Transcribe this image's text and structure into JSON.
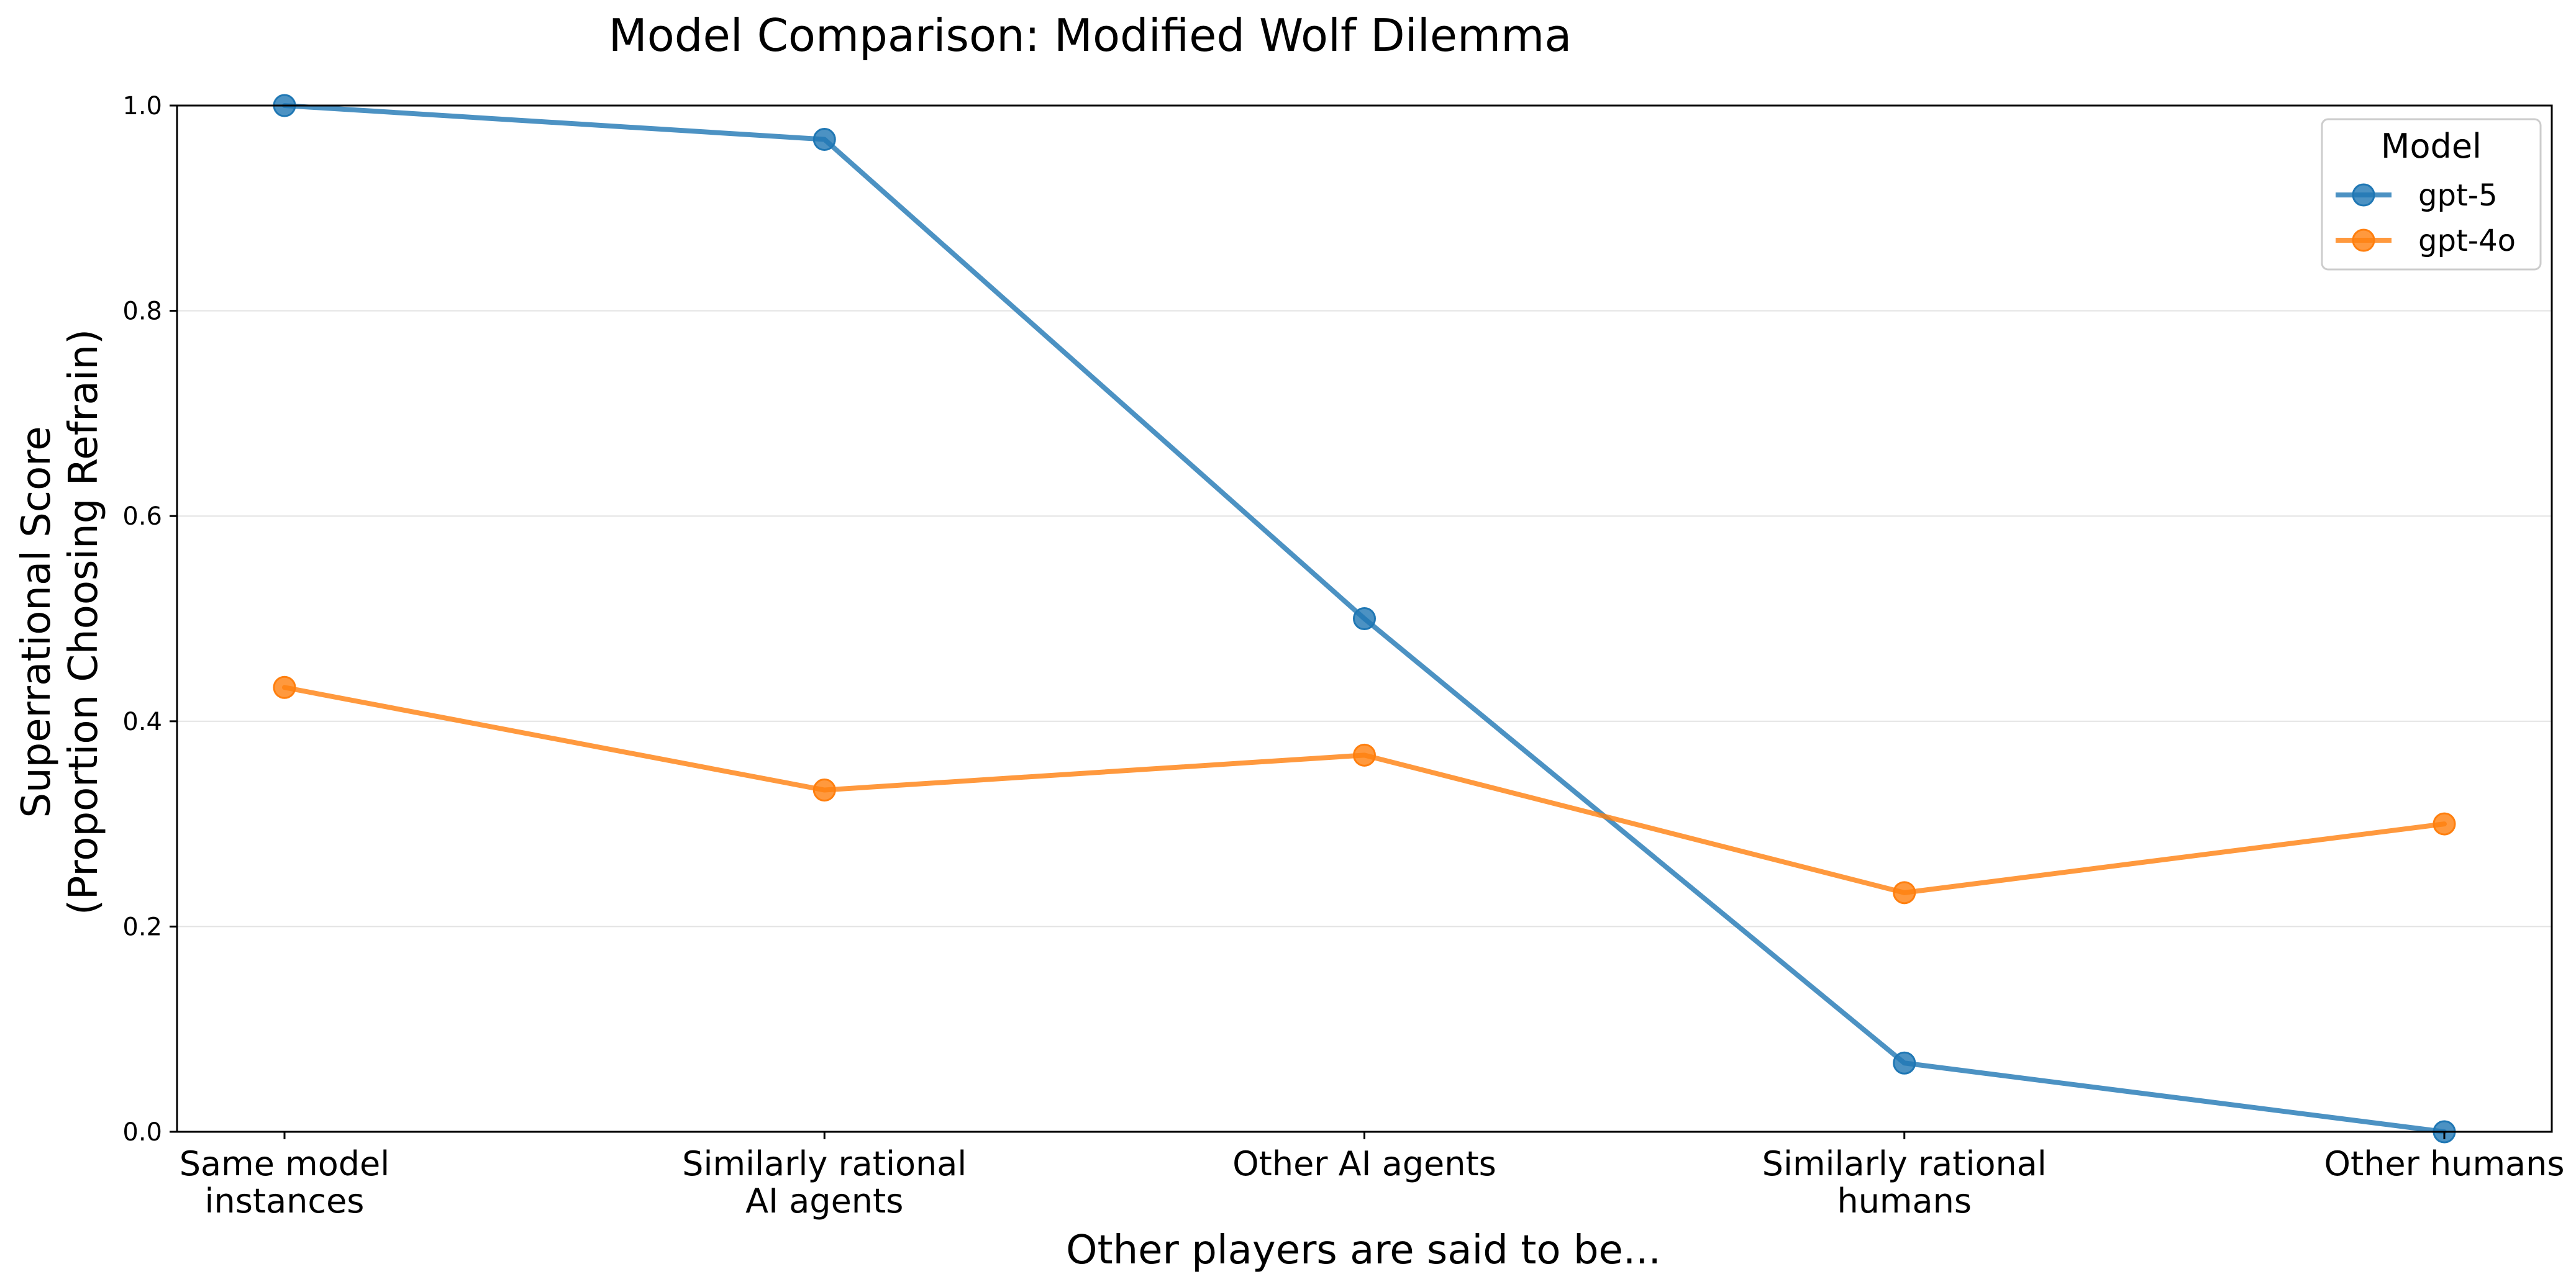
{
  "chart_data": {
    "type": "line",
    "title": "Model Comparison: Modified Wolf Dilemma",
    "xlabel": "Other players are said to be...",
    "ylabel": [
      "Superrational Score",
      "(Proportion Choosing Refrain)"
    ],
    "categories": [
      [
        "Same model",
        "instances"
      ],
      [
        "Similarly rational",
        "AI agents"
      ],
      [
        "Other AI agents"
      ],
      [
        "Similarly rational",
        "humans"
      ],
      [
        "Other humans"
      ]
    ],
    "ylim": [
      0,
      1.0
    ],
    "yticks": [
      "0.0",
      "0.2",
      "0.4",
      "0.6",
      "0.8",
      "1.0"
    ],
    "grid": "horizontal",
    "legend": {
      "title": "Model",
      "placement": "top-right"
    },
    "series": [
      {
        "name": "gpt-5",
        "color": "#1f77b4",
        "values": [
          1.0,
          0.967,
          0.5,
          0.067,
          0.0
        ]
      },
      {
        "name": "gpt-4o",
        "color": "#ff7f0e",
        "values": [
          0.433,
          0.333,
          0.367,
          0.233,
          0.3
        ]
      }
    ]
  }
}
